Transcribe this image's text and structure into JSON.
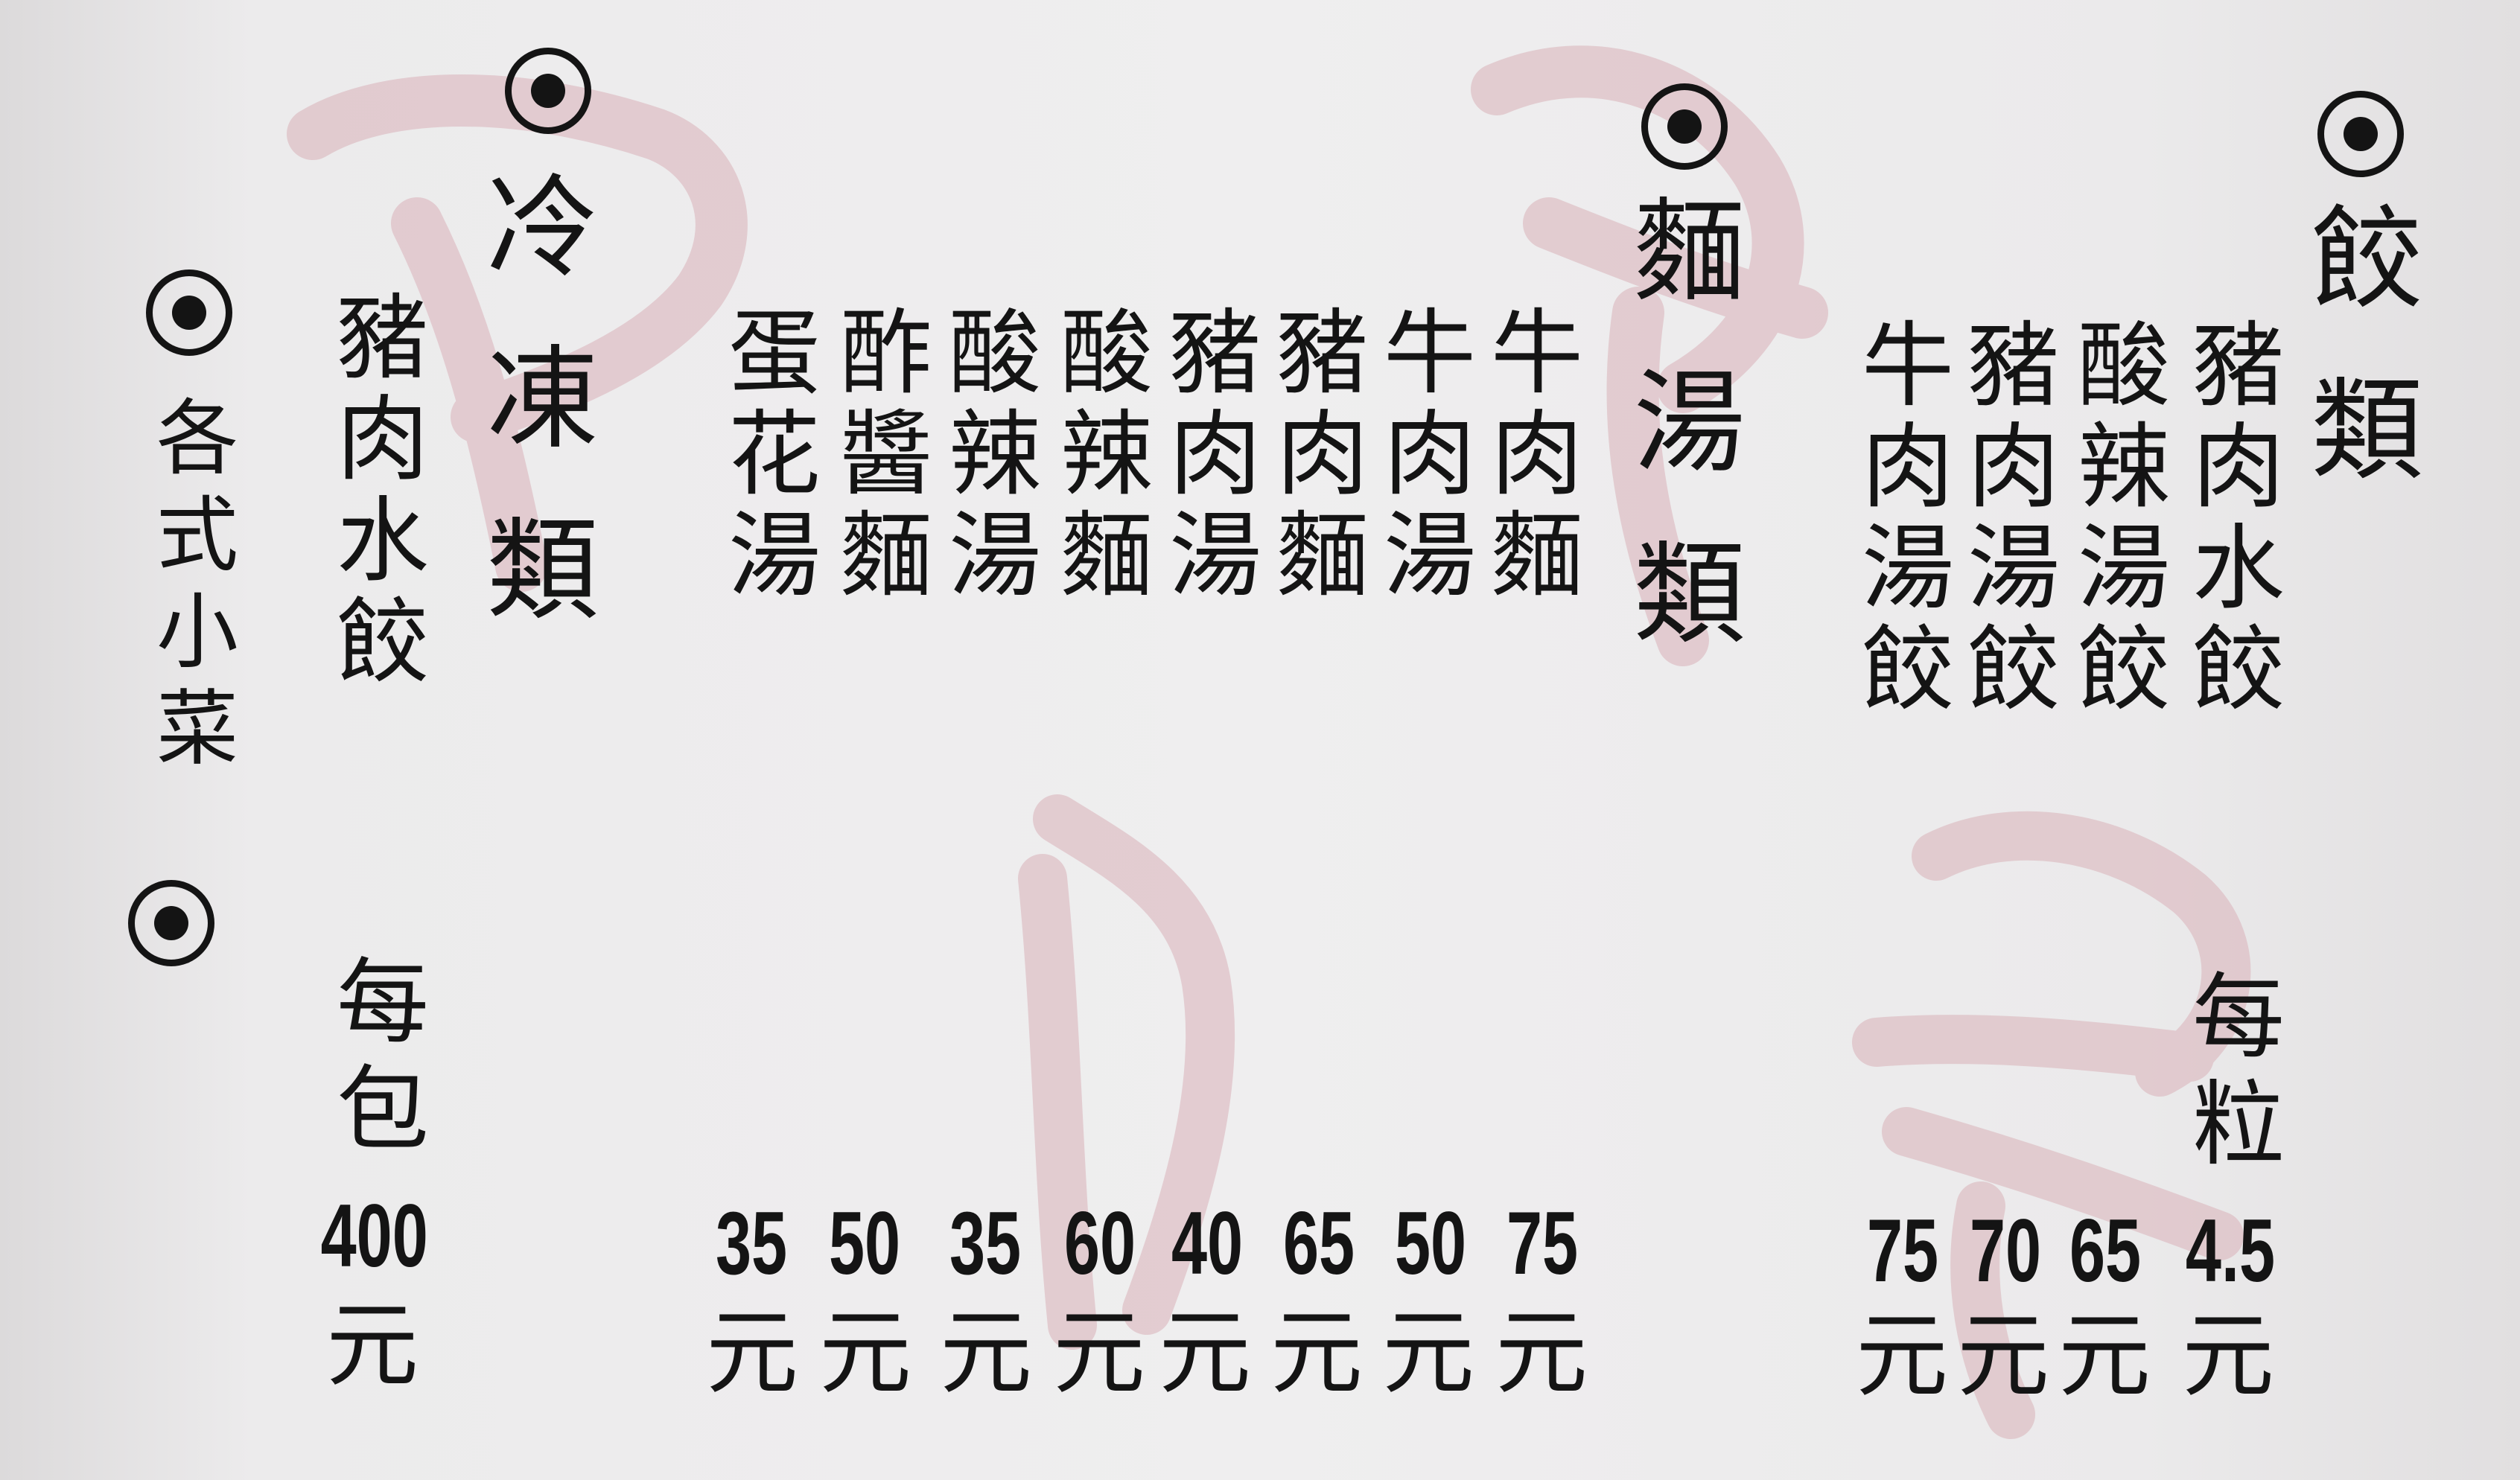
{
  "watermark": {
    "color": "#d8b0b8",
    "characters": [
      "風",
      "食",
      "阿",
      "吉"
    ]
  },
  "sections": {
    "dumplings": {
      "title": "餃類",
      "items": [
        {
          "name": "豬肉水餃",
          "price": "4.5",
          "unit": "元",
          "per": "每粒"
        },
        {
          "name": "酸辣湯餃",
          "price": "65",
          "unit": "元"
        },
        {
          "name": "豬肉湯餃",
          "price": "70",
          "unit": "元"
        },
        {
          "name": "牛肉湯餃",
          "price": "75",
          "unit": "元"
        }
      ]
    },
    "noodles": {
      "title": "麵湯類",
      "items": [
        {
          "name": "牛肉麵",
          "price": "75",
          "unit": "元"
        },
        {
          "name": "牛肉湯",
          "price": "50",
          "unit": "元"
        },
        {
          "name": "豬肉麵",
          "price": "65",
          "unit": "元"
        },
        {
          "name": "豬肉湯",
          "price": "40",
          "unit": "元"
        },
        {
          "name": "酸辣麵",
          "price": "60",
          "unit": "元"
        },
        {
          "name": "酸辣湯",
          "price": "35",
          "unit": "元"
        },
        {
          "name": "酢醬麵",
          "price": "50",
          "unit": "元"
        },
        {
          "name": "蛋花湯",
          "price": "35",
          "unit": "元"
        }
      ]
    },
    "frozen": {
      "title": "冷凍類",
      "items": [
        {
          "name": "豬肉水餃",
          "per": "每包",
          "price": "400",
          "unit": "元"
        }
      ]
    },
    "sides": {
      "title": "各式小菜"
    }
  }
}
